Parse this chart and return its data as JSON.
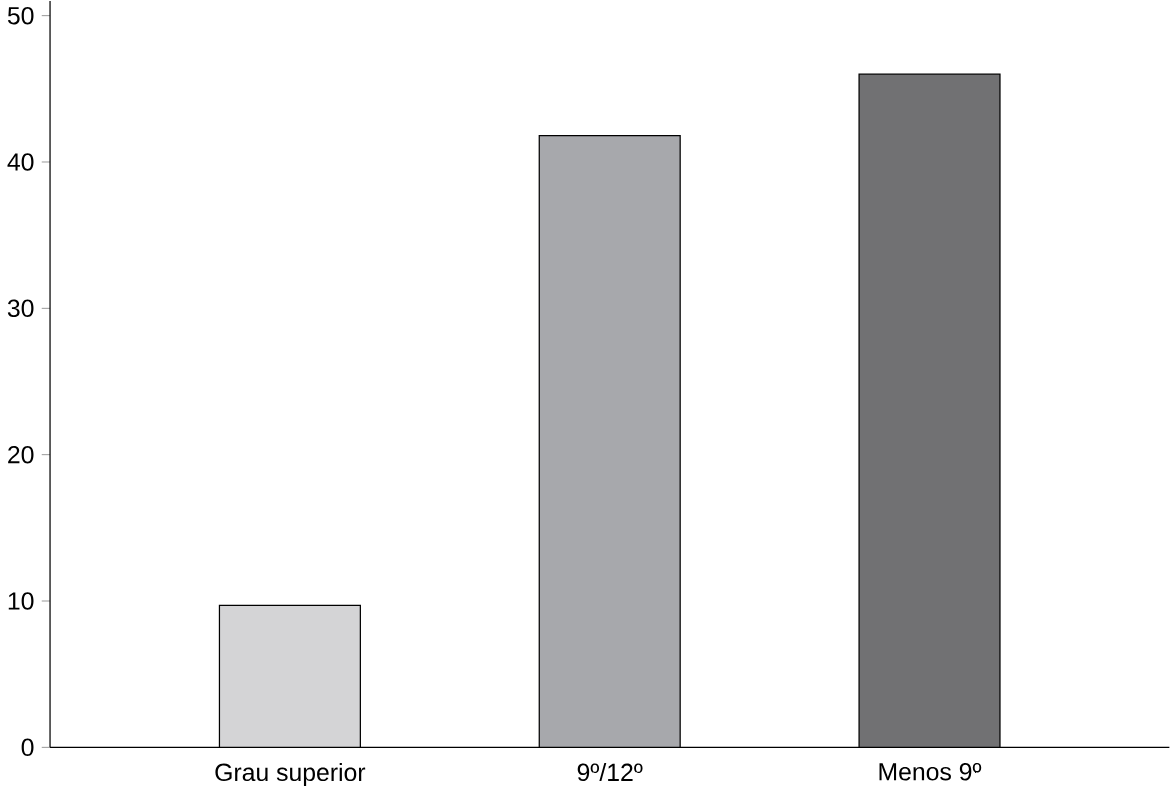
{
  "chart_data": {
    "type": "bar",
    "categories": [
      "Grau superior",
      "9º/12º",
      "Menos 9º"
    ],
    "values": [
      9.7,
      41.8,
      46
    ],
    "colors": [
      "#d4d4d6",
      "#a7a8ac",
      "#717173"
    ],
    "ylim": [
      0,
      51
    ],
    "yticks": [
      0,
      10,
      20,
      30,
      40,
      50
    ]
  }
}
